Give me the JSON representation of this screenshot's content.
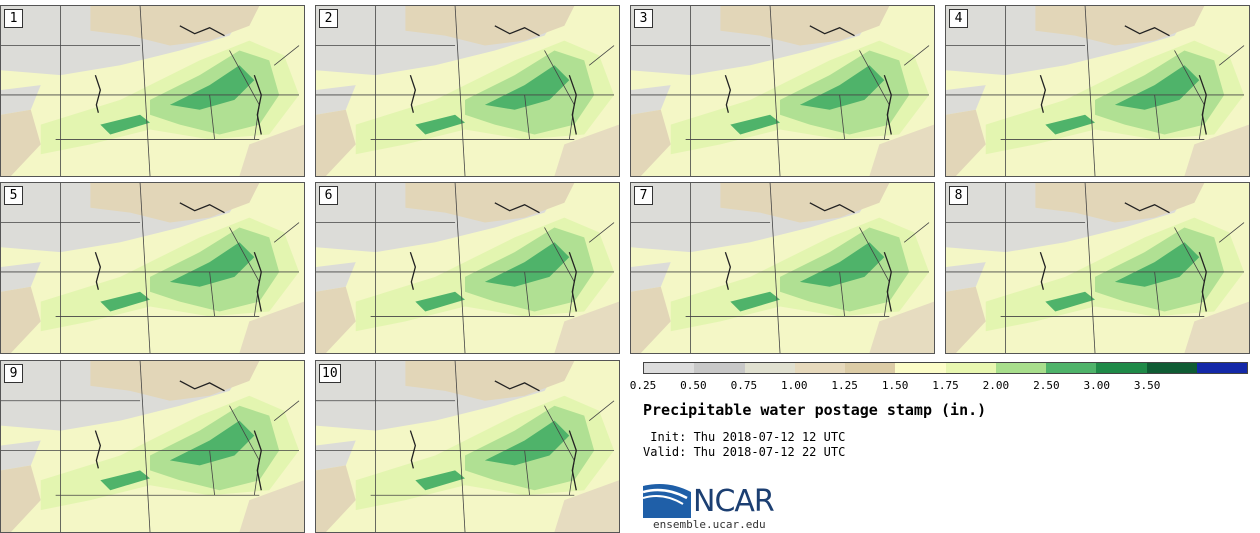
{
  "stamps": [
    {
      "label": "1"
    },
    {
      "label": "2"
    },
    {
      "label": "3"
    },
    {
      "label": "4"
    },
    {
      "label": "5"
    },
    {
      "label": "6"
    },
    {
      "label": "7"
    },
    {
      "label": "8"
    },
    {
      "label": "9"
    },
    {
      "label": "10"
    }
  ],
  "colorbar": {
    "ticks": [
      "0.25",
      "0.50",
      "0.75",
      "1.00",
      "1.25",
      "1.50",
      "1.75",
      "2.00",
      "2.50",
      "3.00",
      "3.50"
    ],
    "colors": [
      "#dcdcdc",
      "#c8c8c8",
      "#e0e0d0",
      "#e6d9bc",
      "#dccca6",
      "#fcfdc8",
      "#e8f7b0",
      "#a8de8c",
      "#4fb36a",
      "#1f8a48",
      "#0f5c34",
      "#1428a8"
    ]
  },
  "title": "Precipitable water postage stamp (in.)",
  "init": " Init: Thu 2018-07-12 12 UTC",
  "valid": "Valid: Thu 2018-07-12 22 UTC",
  "logo": {
    "name": "NCAR",
    "site": "ensemble.ucar.edu"
  }
}
